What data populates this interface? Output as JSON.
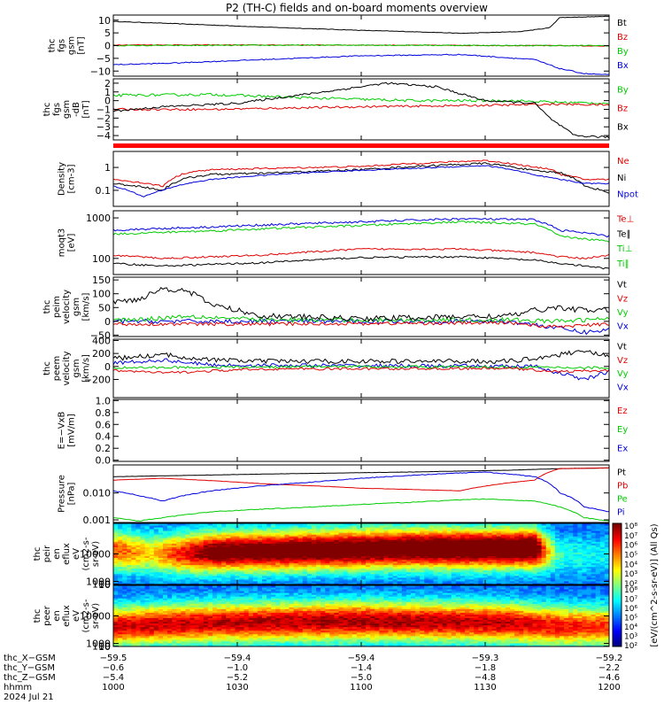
{
  "title": "P2 (TH-C) fields and on-board moments overview",
  "colors": {
    "black": "#000000",
    "red": "#e00000",
    "green": "#00cc00",
    "blue": "#0000dd"
  },
  "chart_data": [
    {
      "type": "line",
      "name": "fgs",
      "ylabel_lines": [
        "thc",
        "fgs",
        "gsm",
        "[nT]"
      ],
      "ylim": [
        -12,
        12
      ],
      "yticks": [
        -10,
        -5,
        0,
        5,
        10
      ],
      "ytick_labels": [
        "−10",
        "−5",
        "0",
        "5",
        "10"
      ],
      "legend": [
        {
          "label": "Bt",
          "color": "black"
        },
        {
          "label": "Bz",
          "color": "red"
        },
        {
          "label": "By",
          "color": "green"
        },
        {
          "label": "Bx",
          "color": "blue"
        }
      ],
      "series": [
        {
          "label": "Bt",
          "color": "black",
          "noise": 0.1,
          "x": [
            0,
            0.1,
            0.3,
            0.5,
            0.65,
            0.7,
            0.82,
            0.88,
            0.9,
            1
          ],
          "y": [
            9.5,
            8.8,
            7.3,
            6.0,
            5.2,
            4.8,
            5.5,
            7.0,
            11,
            11.5
          ]
        },
        {
          "label": "Bz",
          "color": "red",
          "noise": 0.15,
          "x": [
            0,
            0.5,
            0.88,
            0.9,
            1
          ],
          "y": [
            0.3,
            0.2,
            0.0,
            0.0,
            -0.2
          ]
        },
        {
          "label": "By",
          "color": "green",
          "noise": 0.2,
          "x": [
            0,
            0.5,
            0.88,
            1
          ],
          "y": [
            0.0,
            0.2,
            0.0,
            0.0
          ]
        },
        {
          "label": "Bx",
          "color": "blue",
          "noise": 0.2,
          "x": [
            0,
            0.1,
            0.3,
            0.5,
            0.7,
            0.85,
            0.9,
            0.95,
            1
          ],
          "y": [
            -7.5,
            -7.0,
            -5.5,
            -4.0,
            -3.5,
            -5.5,
            -9.0,
            -11.0,
            -11.5
          ]
        }
      ]
    },
    {
      "type": "line",
      "name": "fgs-gse",
      "ylabel_lines": [
        "thc",
        "fgs",
        "gsm",
        "-dB",
        "[nT]"
      ],
      "ylim": [
        -4.5,
        2.5
      ],
      "yticks": [
        -4,
        -3,
        -2,
        -1,
        0,
        1,
        2
      ],
      "ytick_labels": [
        "−4",
        "−3",
        "−2",
        "−1",
        "0",
        "1",
        "2"
      ],
      "legend": [
        {
          "label": "By",
          "color": "green"
        },
        {
          "label": "Bz",
          "color": "red"
        },
        {
          "label": "Bx",
          "color": "black"
        }
      ],
      "series": [
        {
          "label": "By",
          "color": "green",
          "noise": 0.15,
          "x": [
            0,
            0.2,
            0.4,
            0.6,
            0.8,
            0.9,
            1
          ],
          "y": [
            0.6,
            0.7,
            0.3,
            0.0,
            0.0,
            -0.2,
            -0.3
          ]
        },
        {
          "label": "Bz",
          "color": "red",
          "noise": 0.12,
          "x": [
            0,
            0.2,
            0.5,
            0.8,
            0.9,
            1
          ],
          "y": [
            -1.0,
            -1.0,
            -0.7,
            -0.5,
            -0.4,
            -0.5
          ]
        },
        {
          "label": "Bx",
          "color": "black",
          "noise": 0.12,
          "x": [
            0,
            0.1,
            0.25,
            0.45,
            0.55,
            0.65,
            0.75,
            0.85,
            0.88,
            0.93,
            1
          ],
          "y": [
            -1.2,
            -0.7,
            -0.3,
            1.2,
            2.0,
            1.6,
            0.0,
            -0.3,
            -2.0,
            -4.0,
            -4.2
          ]
        }
      ]
    },
    {
      "type": "line",
      "name": "density",
      "log": true,
      "ylabel_lines": [
        "Density",
        "[cm-3]"
      ],
      "ylim": [
        0.02,
        5
      ],
      "yticks": [
        0.1,
        1
      ],
      "ytick_labels": [
        "0.1",
        "1"
      ],
      "legend": [
        {
          "label": "Ne",
          "color": "red"
        },
        {
          "label": "Ni",
          "color": "black"
        },
        {
          "label": "Npot",
          "color": "blue"
        }
      ],
      "series": [
        {
          "label": "Ne",
          "color": "red",
          "noise": 0.08,
          "x": [
            0,
            0.1,
            0.15,
            0.2,
            0.3,
            0.5,
            0.75,
            0.8,
            0.85,
            0.88,
            0.9,
            0.95,
            1
          ],
          "y": [
            0.3,
            0.15,
            0.6,
            0.8,
            0.9,
            1.1,
            2.0,
            1.5,
            1.0,
            0.9,
            0.5,
            0.3,
            0.3
          ]
        },
        {
          "label": "Ni",
          "color": "black",
          "noise": 0.1,
          "x": [
            0,
            0.1,
            0.15,
            0.2,
            0.3,
            0.5,
            0.75,
            0.85,
            0.9,
            0.95,
            1
          ],
          "y": [
            0.2,
            0.1,
            0.35,
            0.5,
            0.55,
            0.8,
            1.5,
            0.7,
            0.6,
            0.15,
            0.08
          ]
        },
        {
          "label": "Npot",
          "color": "blue",
          "noise": 0.06,
          "x": [
            0,
            0.06,
            0.1,
            0.2,
            0.4,
            0.6,
            0.75,
            0.85,
            0.9,
            0.95,
            1
          ],
          "y": [
            0.15,
            0.05,
            0.1,
            0.3,
            0.6,
            0.9,
            1.2,
            0.45,
            0.3,
            0.2,
            0.2
          ]
        }
      ]
    },
    {
      "type": "line",
      "name": "temperature",
      "log": true,
      "ylabel_lines": [
        "moqt3",
        "[eV]"
      ],
      "ylim": [
        40,
        1500
      ],
      "yticks": [
        100,
        1000
      ],
      "ytick_labels": [
        "100",
        "1000"
      ],
      "legend": [
        {
          "label": "Te⊥",
          "color": "red"
        },
        {
          "label": "Te∥",
          "color": "black"
        },
        {
          "label": "Ti⊥",
          "color": "green"
        },
        {
          "label": "Ti∥",
          "color": "green"
        }
      ],
      "series": [
        {
          "label": "Ti⊥",
          "color": "green",
          "noise": 0.06,
          "x": [
            0,
            0.2,
            0.5,
            0.7,
            0.85,
            0.9,
            1
          ],
          "y": [
            400,
            480,
            650,
            800,
            700,
            350,
            260
          ]
        },
        {
          "label": "Ti∥",
          "color": "blue",
          "noise": 0.06,
          "x": [
            0,
            0.2,
            0.5,
            0.7,
            0.85,
            0.9,
            1
          ],
          "y": [
            500,
            600,
            800,
            950,
            900,
            500,
            350
          ]
        },
        {
          "label": "Te⊥",
          "color": "red",
          "noise": 0.05,
          "x": [
            0,
            0.1,
            0.3,
            0.5,
            0.7,
            0.85,
            0.9,
            0.95,
            1
          ],
          "y": [
            120,
            100,
            120,
            170,
            170,
            140,
            110,
            100,
            120
          ]
        },
        {
          "label": "Te∥",
          "color": "black",
          "noise": 0.05,
          "x": [
            0,
            0.1,
            0.3,
            0.5,
            0.7,
            0.85,
            0.9,
            0.95,
            1
          ],
          "y": [
            75,
            65,
            78,
            105,
            110,
            90,
            75,
            65,
            55
          ]
        }
      ]
    },
    {
      "type": "line",
      "name": "peim-velocity",
      "ylabel_lines": [
        "thc",
        "peim",
        "velocity",
        "gsm",
        "[km/s]"
      ],
      "ylim": [
        -55,
        160
      ],
      "yticks": [
        -50,
        0,
        50,
        100,
        150
      ],
      "ytick_labels": [
        "−50",
        "0",
        "50",
        "100",
        "150"
      ],
      "legend": [
        {
          "label": "Vt",
          "color": "black"
        },
        {
          "label": "Vz",
          "color": "red"
        },
        {
          "label": "Vy",
          "color": "green"
        },
        {
          "label": "Vx",
          "color": "blue"
        }
      ],
      "series": [
        {
          "label": "Vx",
          "color": "blue",
          "noise": 8,
          "x": [
            0,
            0.3,
            0.8,
            0.88,
            0.95,
            1
          ],
          "y": [
            0,
            0,
            0,
            -20,
            -40,
            -30
          ]
        },
        {
          "label": "Vy",
          "color": "green",
          "noise": 8,
          "x": [
            0,
            0.08,
            0.15,
            0.3,
            0.8,
            0.9,
            1
          ],
          "y": [
            5,
            10,
            20,
            5,
            5,
            0,
            10
          ]
        },
        {
          "label": "Vz",
          "color": "red",
          "noise": 6,
          "x": [
            0,
            0.3,
            0.8,
            0.88,
            1
          ],
          "y": [
            -10,
            -10,
            -5,
            -20,
            -10
          ]
        },
        {
          "label": "Vt",
          "color": "black",
          "noise": 10,
          "x": [
            0,
            0.05,
            0.1,
            0.15,
            0.2,
            0.3,
            0.5,
            0.8,
            0.85,
            0.9,
            0.95,
            1
          ],
          "y": [
            70,
            80,
            120,
            110,
            60,
            20,
            10,
            20,
            40,
            50,
            40,
            40
          ]
        }
      ]
    },
    {
      "type": "line",
      "name": "peem-velocity",
      "ylabel_lines": [
        "thc",
        "peem",
        "velocity",
        "gsm",
        "[km/s]"
      ],
      "ylim": [
        -480,
        420
      ],
      "yticks": [
        -200,
        0,
        200,
        400
      ],
      "ytick_labels": [
        "−200",
        "0",
        "200",
        "400"
      ],
      "legend": [
        {
          "label": "Vt",
          "color": "black"
        },
        {
          "label": "Vz",
          "color": "red"
        },
        {
          "label": "Vy",
          "color": "green"
        },
        {
          "label": "Vx",
          "color": "blue"
        }
      ],
      "series": [
        {
          "label": "Vx",
          "color": "blue",
          "noise": 30,
          "x": [
            0,
            0.1,
            0.2,
            0.85,
            0.9,
            0.95,
            1
          ],
          "y": [
            50,
            100,
            20,
            0,
            -100,
            -200,
            -80
          ]
        },
        {
          "label": "Vy",
          "color": "green",
          "noise": 20,
          "x": [
            0,
            0.5,
            1
          ],
          "y": [
            -20,
            0,
            -20
          ]
        },
        {
          "label": "Vz",
          "color": "red",
          "noise": 20,
          "x": [
            0,
            0.1,
            0.3,
            0.8,
            0.9,
            1
          ],
          "y": [
            -60,
            -100,
            -40,
            -30,
            -80,
            -60
          ]
        },
        {
          "label": "Vt",
          "color": "black",
          "noise": 35,
          "x": [
            0,
            0.1,
            0.2,
            0.3,
            0.8,
            0.9,
            0.95,
            1
          ],
          "y": [
            120,
            180,
            100,
            80,
            80,
            180,
            250,
            150
          ]
        }
      ]
    },
    {
      "type": "line",
      "name": "efield",
      "ylabel_lines": [
        "E=−VxB",
        "[mV/m]"
      ],
      "ylim": [
        -0.02,
        1.02
      ],
      "yticks": [
        0,
        0.2,
        0.4,
        0.6,
        0.8,
        1.0
      ],
      "ytick_labels": [
        "0.0",
        "0.2",
        "0.4",
        "0.6",
        "0.8",
        "1.0"
      ],
      "legend": [
        {
          "label": "Ez",
          "color": "red"
        },
        {
          "label": "Ey",
          "color": "green"
        },
        {
          "label": "Ex",
          "color": "blue"
        }
      ],
      "series": []
    },
    {
      "type": "line",
      "name": "pressure",
      "log": true,
      "ylabel_lines": [
        "Pressure",
        "[nPa]"
      ],
      "ylim": [
        0.0008,
        0.11
      ],
      "yticks": [
        0.001,
        0.01
      ],
      "ytick_labels": [
        "0.001",
        "0.010"
      ],
      "legend": [
        {
          "label": "Pt",
          "color": "black"
        },
        {
          "label": "Pb",
          "color": "red"
        },
        {
          "label": "Pe",
          "color": "green"
        },
        {
          "label": "Pi",
          "color": "blue"
        }
      ],
      "series": [
        {
          "label": "Pt",
          "color": "black",
          "noise": 0.01,
          "x": [
            0,
            0.3,
            0.6,
            0.8,
            0.9,
            1
          ],
          "y": [
            0.04,
            0.05,
            0.06,
            0.07,
            0.08,
            0.085
          ]
        },
        {
          "label": "Pb",
          "color": "red",
          "noise": 0.01,
          "x": [
            0,
            0.1,
            0.3,
            0.5,
            0.7,
            0.85,
            0.88,
            0.9,
            1
          ],
          "y": [
            0.03,
            0.035,
            0.022,
            0.015,
            0.012,
            0.03,
            0.06,
            0.08,
            0.085
          ]
        },
        {
          "label": "Pi",
          "color": "blue",
          "noise": 0.03,
          "x": [
            0,
            0.05,
            0.1,
            0.2,
            0.4,
            0.6,
            0.75,
            0.85,
            0.9,
            0.95,
            1
          ],
          "y": [
            0.012,
            0.008,
            0.005,
            0.012,
            0.025,
            0.045,
            0.06,
            0.04,
            0.01,
            0.003,
            0.002
          ]
        },
        {
          "label": "Pe",
          "color": "green",
          "noise": 0.03,
          "x": [
            0,
            0.05,
            0.1,
            0.2,
            0.4,
            0.6,
            0.75,
            0.85,
            0.9,
            0.95,
            1
          ],
          "y": [
            0.0012,
            0.0009,
            0.0012,
            0.002,
            0.003,
            0.0045,
            0.006,
            0.005,
            0.003,
            0.0012,
            0.0009
          ]
        }
      ]
    },
    {
      "type": "heatmap",
      "name": "peir-spectrogram",
      "ylabel_lines": [
        "thc",
        "peir",
        "en",
        "eflux",
        "eV",
        "(cm2-s-",
        "sr-eV)"
      ],
      "ylim": [
        7,
        20000
      ],
      "yticks": [
        10,
        100,
        1000,
        10000
      ],
      "ytick_labels": [
        "10",
        "100",
        "1000",
        "10000"
      ],
      "profile": {
        "x": [
          0,
          0.08,
          0.12,
          0.2,
          0.4,
          0.6,
          0.75,
          0.85,
          0.88,
          0.9,
          1
        ],
        "peak_log_energy": [
          2.8,
          2.6,
          2.6,
          2.7,
          2.8,
          2.9,
          2.9,
          2.9,
          2.7,
          2.5,
          2.5
        ],
        "intensity": [
          0.6,
          0.45,
          0.6,
          0.85,
          0.9,
          0.92,
          0.95,
          0.95,
          0.4,
          0.2,
          0.15
        ]
      }
    },
    {
      "type": "heatmap",
      "name": "peer-spectrogram",
      "ylabel_lines": [
        "thc",
        "peer",
        "en",
        "eflux",
        "eV",
        "(cm2-s-",
        "sr-eV)"
      ],
      "ylim": [
        7,
        20000
      ],
      "yticks": [
        10,
        100,
        1000,
        10000
      ],
      "ytick_labels": [
        "10",
        "100",
        "1000",
        "10000"
      ],
      "profile": {
        "x": [
          0,
          0.2,
          0.5,
          0.8,
          0.9,
          1
        ],
        "peak_log_energy": [
          2.0,
          2.2,
          2.3,
          2.2,
          2.0,
          2.0
        ],
        "intensity": [
          0.7,
          0.72,
          0.75,
          0.72,
          0.65,
          0.6
        ]
      }
    }
  ],
  "colorbar": {
    "label": "[eV/(cm^2-s-sr-eV)] (All Qs)",
    "ticks_upper": [
      "10⁸",
      "10⁷",
      "10⁶",
      "10⁵",
      "10⁴",
      "10³",
      "10²"
    ],
    "ticks_lower": [
      "10⁸",
      "10⁷",
      "10⁶",
      "10⁵",
      "10⁴",
      "10³",
      "10²"
    ]
  },
  "x_axis": {
    "row_labels": [
      "thc_X−GSM",
      "thc_Y−GSM",
      "thc_Z−GSM",
      "hhmm",
      "2024 Jul 21"
    ],
    "columns": [
      [
        "−59.5",
        "−0.6",
        "−5.4",
        "1000"
      ],
      [
        "−59.4",
        "−1.0",
        "−5.2",
        "1030"
      ],
      [
        "−59.4",
        "−1.4",
        "−5.0",
        "1100"
      ],
      [
        "−59.3",
        "−1.8",
        "−4.8",
        "1130"
      ],
      [
        "−59.2",
        "−2.2",
        "−4.6",
        "1200"
      ]
    ]
  }
}
